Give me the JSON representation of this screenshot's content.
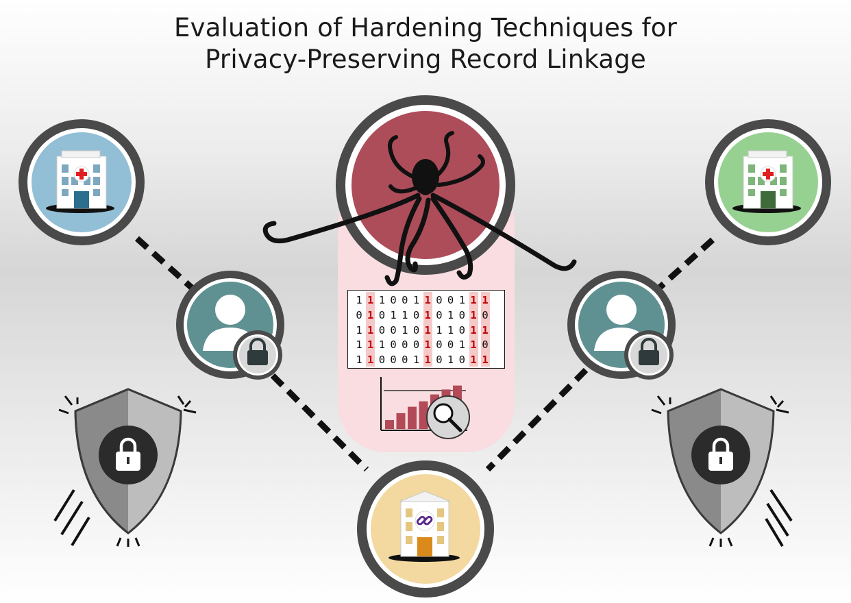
{
  "title": {
    "line1": "Evaluation of Hardening Techniques for",
    "line2": "Privacy-Preserving Record Linkage"
  },
  "colors": {
    "left_hospital": "#93bfd6",
    "right_hospital": "#97d192",
    "attacker": "#ad4d5a",
    "linkage_unit": "#f3d9a0",
    "person": "#5f9193",
    "ring": "#4a4a4a",
    "shield_dark": "#8a8a8a",
    "shield_light": "#bdbdbd",
    "bit_highlight": "#f6c9c9",
    "bar": "#b24b57"
  },
  "icons": [
    "hospital-icon-left",
    "hospital-icon-right",
    "octopus-attacker-icon",
    "linkage-unit-icon",
    "person-icon-left",
    "person-icon-right",
    "lock-icon",
    "shield-lock-icon-left",
    "shield-lock-icon-right",
    "magnifier-icon",
    "bar-chart-icon",
    "chain-link-icon"
  ],
  "bit_matrix": {
    "rows": [
      "11100110011 1",
      "01011010101 0",
      "11001011101 1",
      "11100010011 0",
      "11000110101 1"
    ],
    "highlight_columns": [
      1,
      6,
      10
    ]
  },
  "bar_chart_values": [
    0.18,
    0.32,
    0.45,
    0.56,
    0.7,
    0.8,
    0.88
  ]
}
